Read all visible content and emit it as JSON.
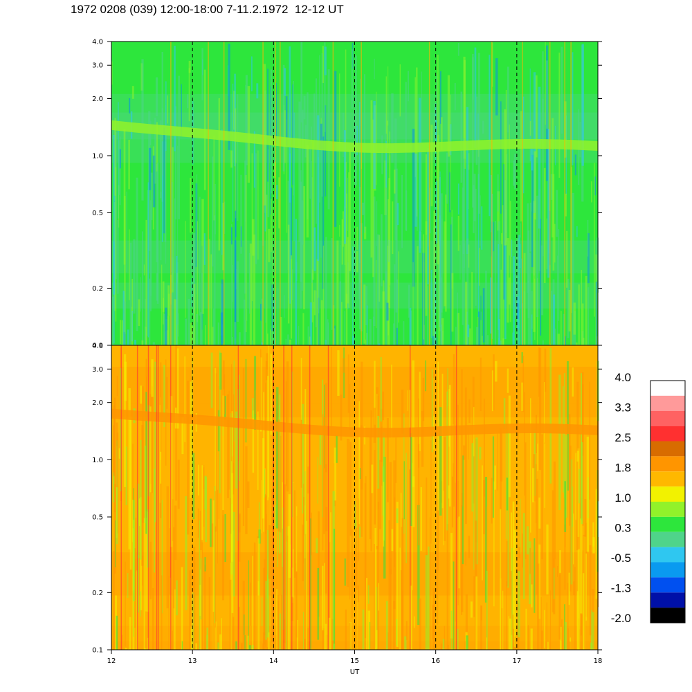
{
  "title": "1972 0208 (039) 12:00-18:00 7-11.2.1972  12-12 UT",
  "chart_data": {
    "type": "heatmap",
    "xlabel": "UT",
    "x_ticks": [
      "12",
      "13",
      "14",
      "15",
      "16",
      "17",
      "18"
    ],
    "xlim": [
      12,
      18
    ],
    "y_scale": "log",
    "panels": [
      {
        "name": "",
        "ylim": [
          0.1,
          4.0
        ],
        "y_ticks": [
          "0.1",
          "0.2",
          "0.5",
          "1.0",
          "2.0",
          "3.0",
          "4.0"
        ],
        "band": {
          "freq_start": 1.45,
          "freq_end": 1.1,
          "color": "#92f22a"
        },
        "dominant_colors": [
          "#2de63c",
          "#4fd48a",
          "#8cf22e",
          "#2fc7f0",
          "#0a8fe6"
        ]
      },
      {
        "name": "",
        "ylim": [
          0.1,
          4.0
        ],
        "y_ticks": [
          "0.1",
          "0.2",
          "0.5",
          "1.0",
          "2.0",
          "3.0",
          "4.0"
        ],
        "band": {
          "freq_start": 1.75,
          "freq_end": 1.4,
          "color": "#ff9500"
        },
        "dominant_colors": [
          "#ffb400",
          "#ff9500",
          "#f2f200",
          "#92f22a",
          "#2de63c"
        ]
      }
    ],
    "colorbar": {
      "labels": [
        "4.0",
        "3.3",
        "2.5",
        "1.8",
        "1.0",
        "0.3",
        "-0.5",
        "-1.3",
        "-2.0"
      ],
      "colors": [
        "#ffffff",
        "#ff9a9a",
        "#ff6262",
        "#ff3030",
        "#d86c00",
        "#ff9500",
        "#ffb800",
        "#f2f200",
        "#92f22a",
        "#2de63c",
        "#4fd48a",
        "#2fc7f0",
        "#0a9af0",
        "#0050f0",
        "#0010a8",
        "#000000"
      ]
    },
    "grid": "vertical dashed at each hour",
    "legend": "colorbar right"
  }
}
